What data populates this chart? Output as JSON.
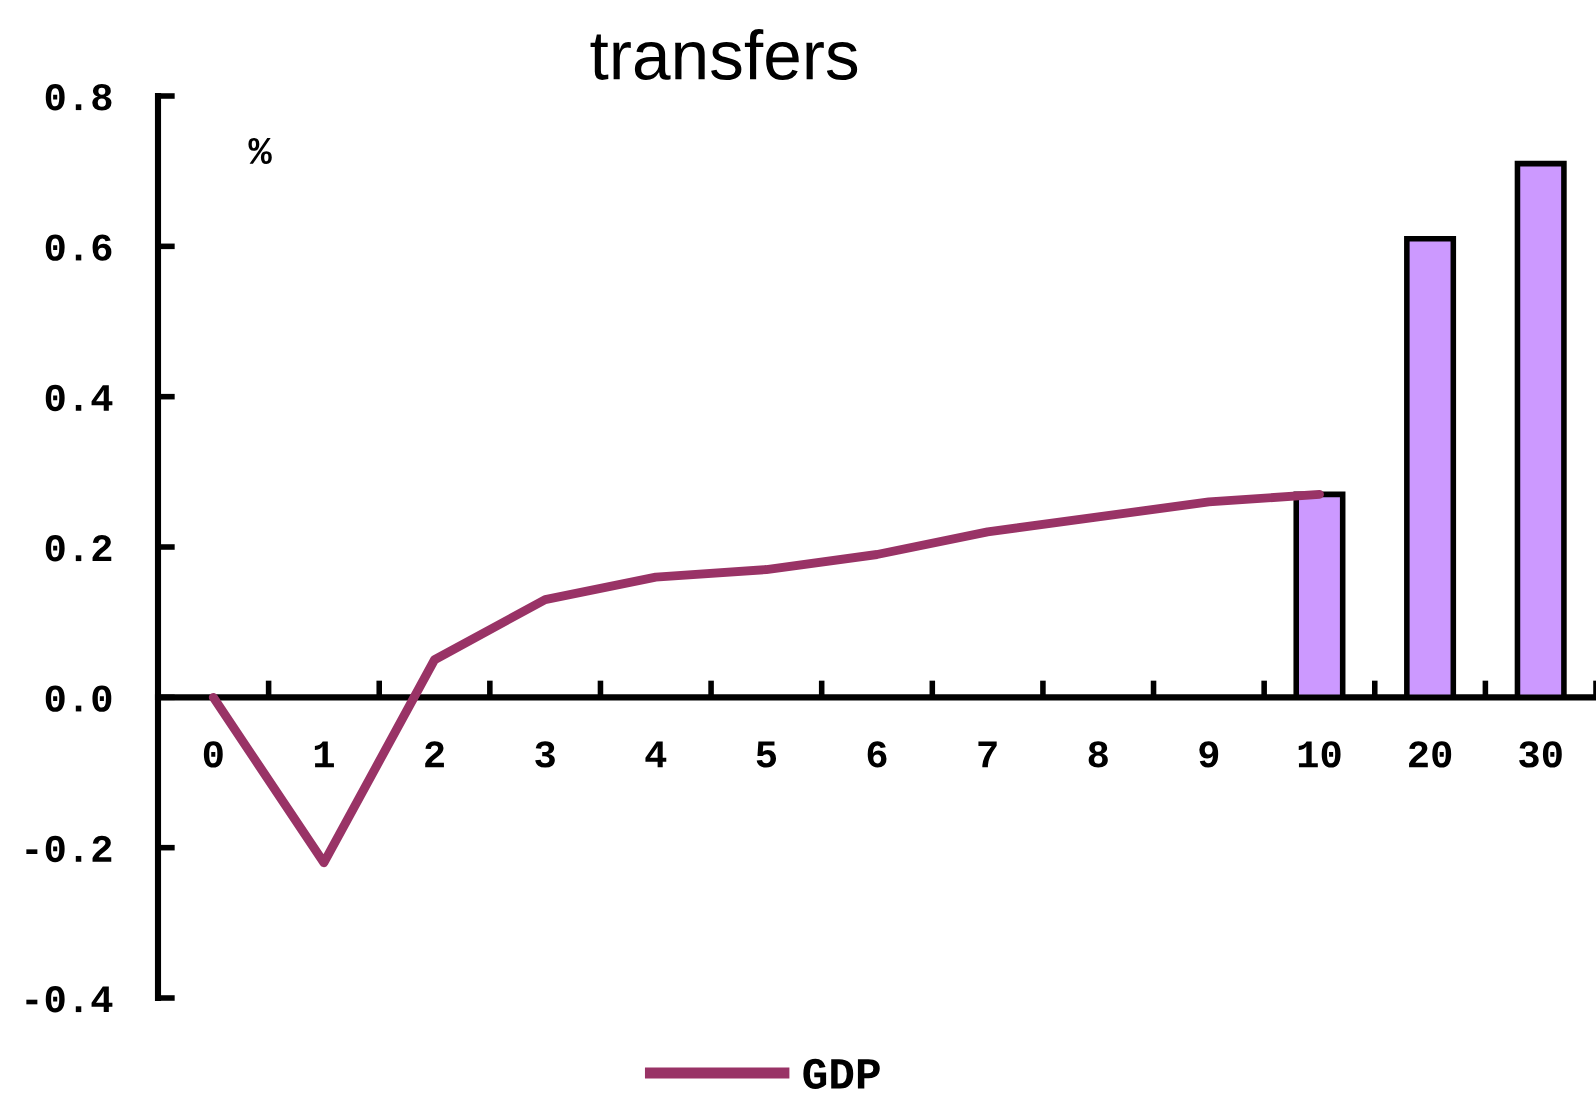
{
  "chart_data": {
    "type": "bar",
    "title": "transfers",
    "ylabel": "%",
    "categories": [
      "0",
      "1",
      "2",
      "3",
      "4",
      "5",
      "6",
      "7",
      "8",
      "9",
      "10",
      "20",
      "30"
    ],
    "series": [
      {
        "color": "#cc99ff",
        "values": [
          null,
          null,
          null,
          null,
          null,
          null,
          null,
          null,
          null,
          null,
          0.27,
          0.61,
          0.71
        ]
      },
      {
        "type": "line",
        "name": "GDP",
        "color": "#993366",
        "values": [
          0.0,
          -0.22,
          0.05,
          0.13,
          0.16,
          0.17,
          0.19,
          0.22,
          0.24,
          0.26,
          0.27,
          null,
          null
        ]
      }
    ],
    "ylim": [
      -0.4,
      0.8
    ],
    "yticks": [
      {
        "value": -0.4,
        "label": "-0.4"
      },
      {
        "value": -0.2,
        "label": "-0.2"
      },
      {
        "value": 0,
        "label": "0.0"
      },
      {
        "value": 0.2,
        "label": "0.2"
      },
      {
        "value": 0.4,
        "label": "0.4"
      },
      {
        "value": 0.6,
        "label": "0.6"
      },
      {
        "value": 0.8,
        "label": "0.8"
      }
    ],
    "legend": "bottom",
    "grid": false,
    "marker": "none",
    "line_style": "solid"
  }
}
